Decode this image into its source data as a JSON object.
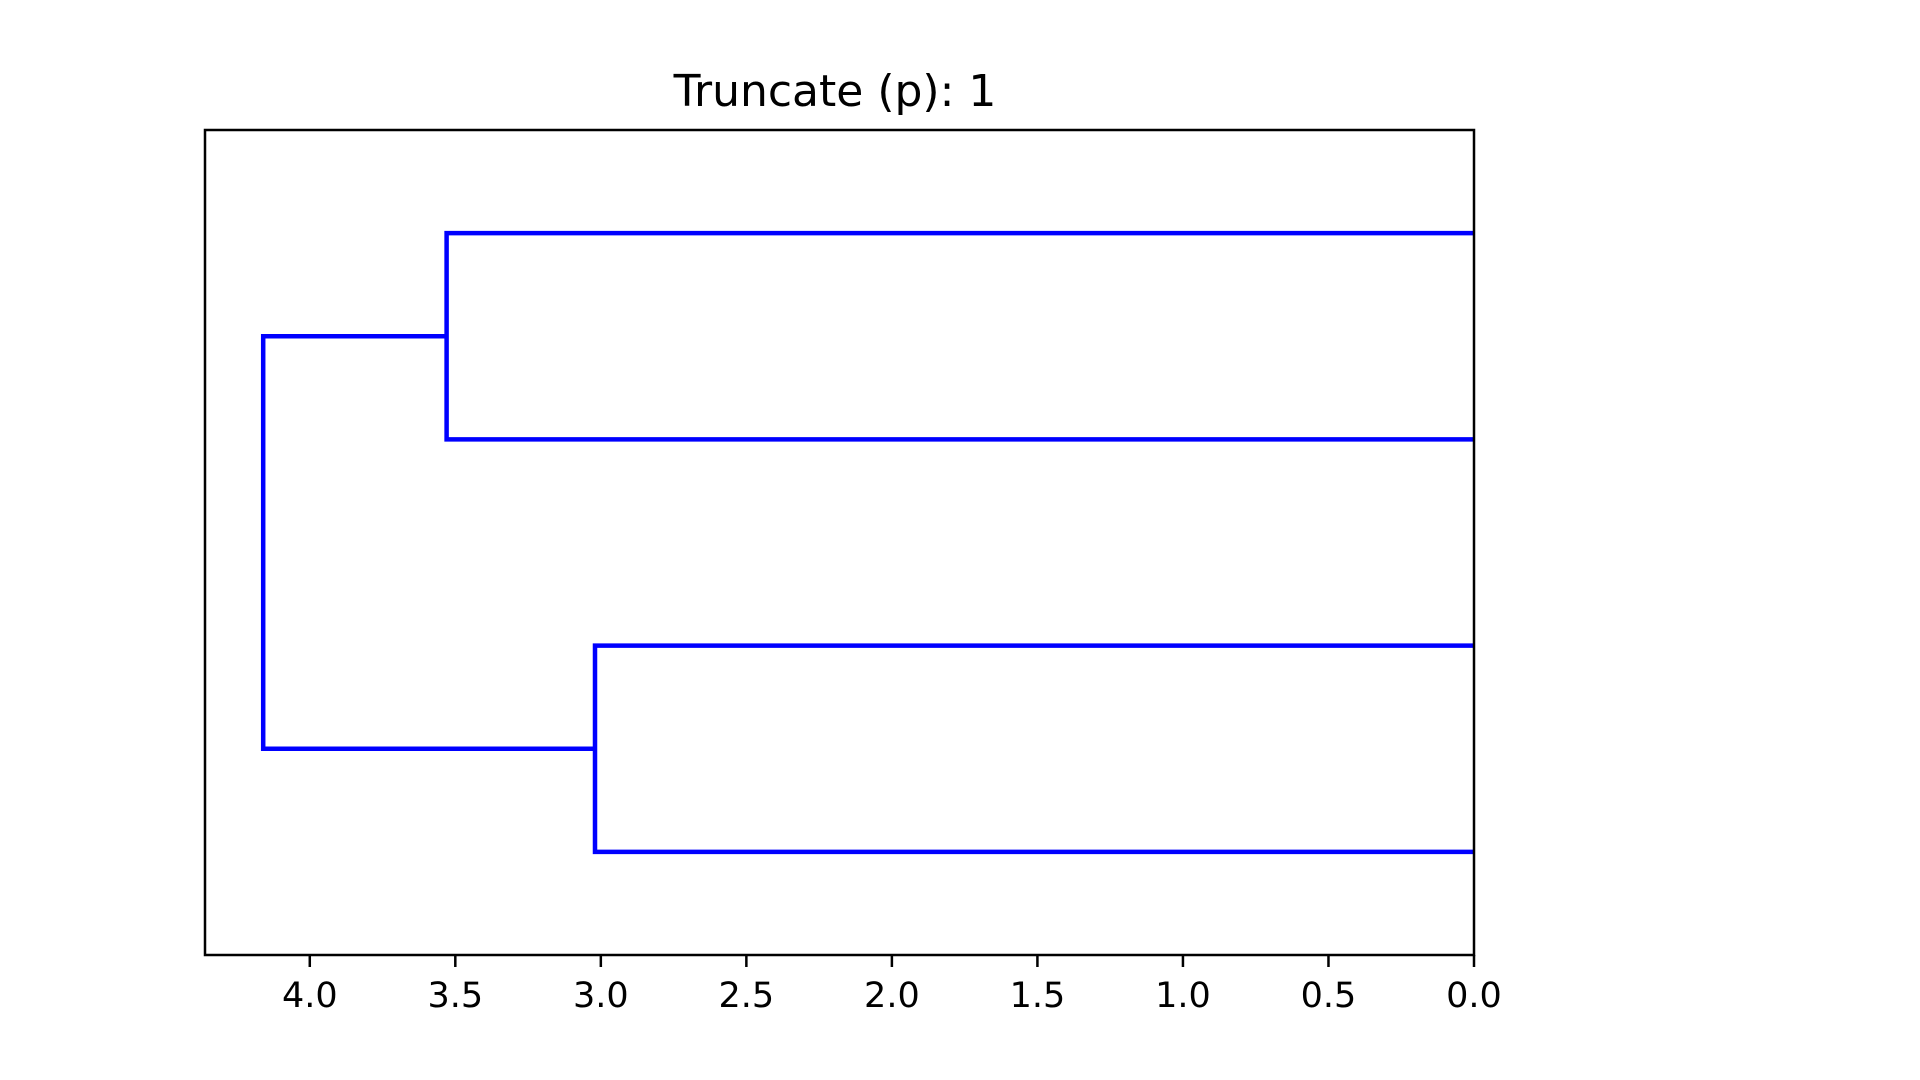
{
  "chart_data": {
    "type": "dendrogram",
    "orientation": "left",
    "title": "Truncate (p): 1",
    "xlabel": "",
    "ylabel": "",
    "x_axis_reversed": true,
    "xlim": [
      4.36,
      0.0
    ],
    "ylim": [
      0,
      40
    ],
    "grid": false,
    "legend": "none",
    "x_ticks": [
      4.0,
      3.5,
      3.0,
      2.5,
      2.0,
      1.5,
      1.0,
      0.5,
      0.0
    ],
    "x_tick_labels": [
      "4.0",
      "3.5",
      "3.0",
      "2.5",
      "2.0",
      "1.5",
      "1.0",
      "0.5",
      "0.0"
    ],
    "y_tick_labels": [],
    "link_color": "#0000ff",
    "axes_color": "#000000",
    "links": [
      {
        "x": [
          0.0,
          3.02,
          3.02,
          0.0
        ],
        "y": [
          5,
          5,
          15,
          15
        ]
      },
      {
        "x": [
          0.0,
          3.53,
          3.53,
          0.0
        ],
        "y": [
          25,
          25,
          35,
          35
        ]
      },
      {
        "x": [
          3.02,
          4.16,
          4.16,
          3.53
        ],
        "y": [
          10,
          10,
          30,
          30
        ]
      }
    ]
  }
}
